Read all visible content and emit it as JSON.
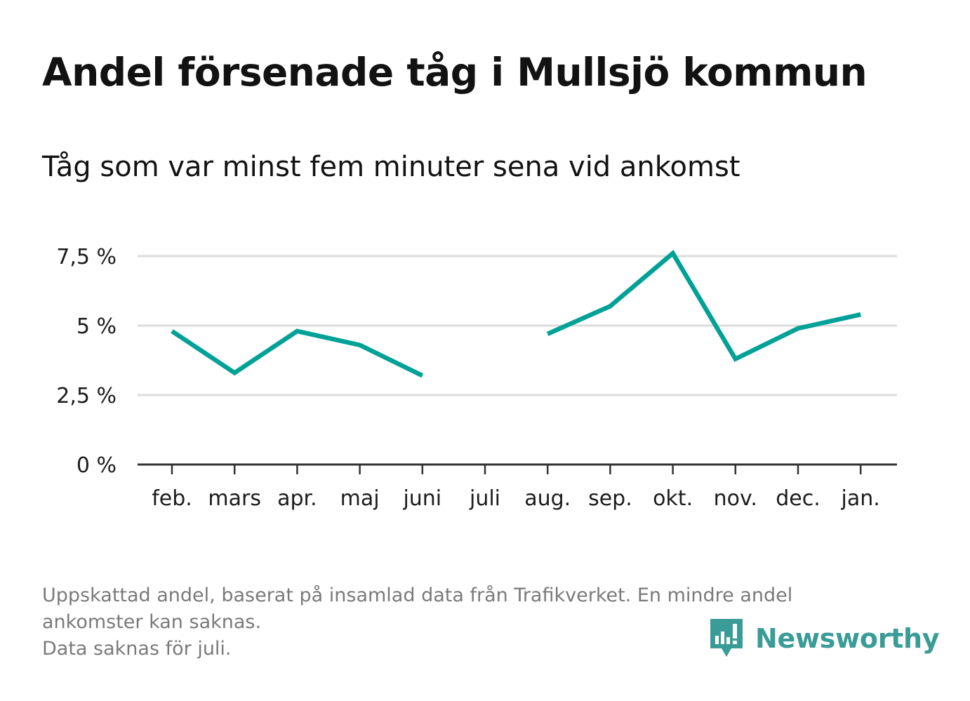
{
  "title": "Andel försenade tåg i Mullsjö kommun",
  "subtitle": "Tåg som var minst fem minuter sena vid ankomst",
  "footer": {
    "note_line1": "Uppskattad andel, baserat på insamlad data från Trafikverket. En mindre andel",
    "note_line2": "ankomster kan saknas.",
    "note_line3": "Data saknas för juli."
  },
  "brand": {
    "name": "Newsworthy",
    "icon": "newsworthy-logo-icon",
    "color": "#3a9c97"
  },
  "chart_data": {
    "type": "line",
    "title": "Andel försenade tåg i Mullsjö kommun",
    "subtitle": "Tåg som var minst fem minuter sena vid ankomst",
    "xlabel": "",
    "ylabel": "",
    "categories": [
      "feb.",
      "mars",
      "apr.",
      "maj",
      "juni",
      "juli",
      "aug.",
      "sep.",
      "okt.",
      "nov.",
      "dec.",
      "jan."
    ],
    "series": [
      {
        "values": [
          4.8,
          3.3,
          4.8,
          4.3,
          3.2,
          null,
          4.7,
          5.7,
          7.6,
          3.8,
          4.9,
          5.4
        ],
        "color": "#00a196"
      }
    ],
    "ylim": [
      0,
      7.5
    ],
    "yticks": [
      0,
      2.5,
      5,
      7.5
    ],
    "ytick_labels": [
      "0 %",
      "2,5 %",
      "5 %",
      "7,5 %"
    ],
    "grid": true,
    "legend": "none"
  }
}
